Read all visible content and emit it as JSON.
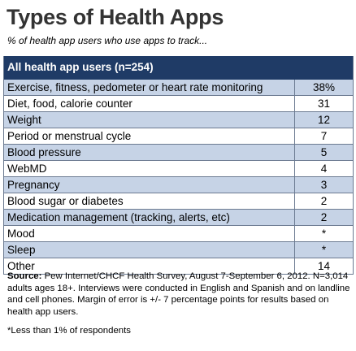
{
  "header": {
    "title": "Types of Health Apps",
    "subtitle": "% of health app users who use apps to track..."
  },
  "chart_data": {
    "type": "table",
    "column_header": "All health app users (n=254)",
    "categories": [
      "Exercise, fitness, pedometer or heart rate monitoring",
      "Diet, food, calorie counter",
      "Weight",
      "Period or menstrual cycle",
      "Blood pressure",
      "WebMD",
      "Pregnancy",
      "Blood sugar or diabetes",
      "Medication management (tracking, alerts, etc)",
      "Mood",
      "Sleep",
      "Other"
    ],
    "values": [
      "38%",
      "31",
      "12",
      "7",
      "5",
      "4",
      "3",
      "2",
      "2",
      "*",
      "*",
      "14"
    ]
  },
  "footer": {
    "source_label": "Source:",
    "source_text": " Pew Internet/CHCF Health Survey, August 7-September 6, 2012. N=3,014 adults ages 18+. Interviews were conducted in English and Spanish and on landline and cell phones. Margin of error is +/- 7 percentage points for results based on health app users.",
    "footnote": "*Less than 1% of respondents"
  }
}
